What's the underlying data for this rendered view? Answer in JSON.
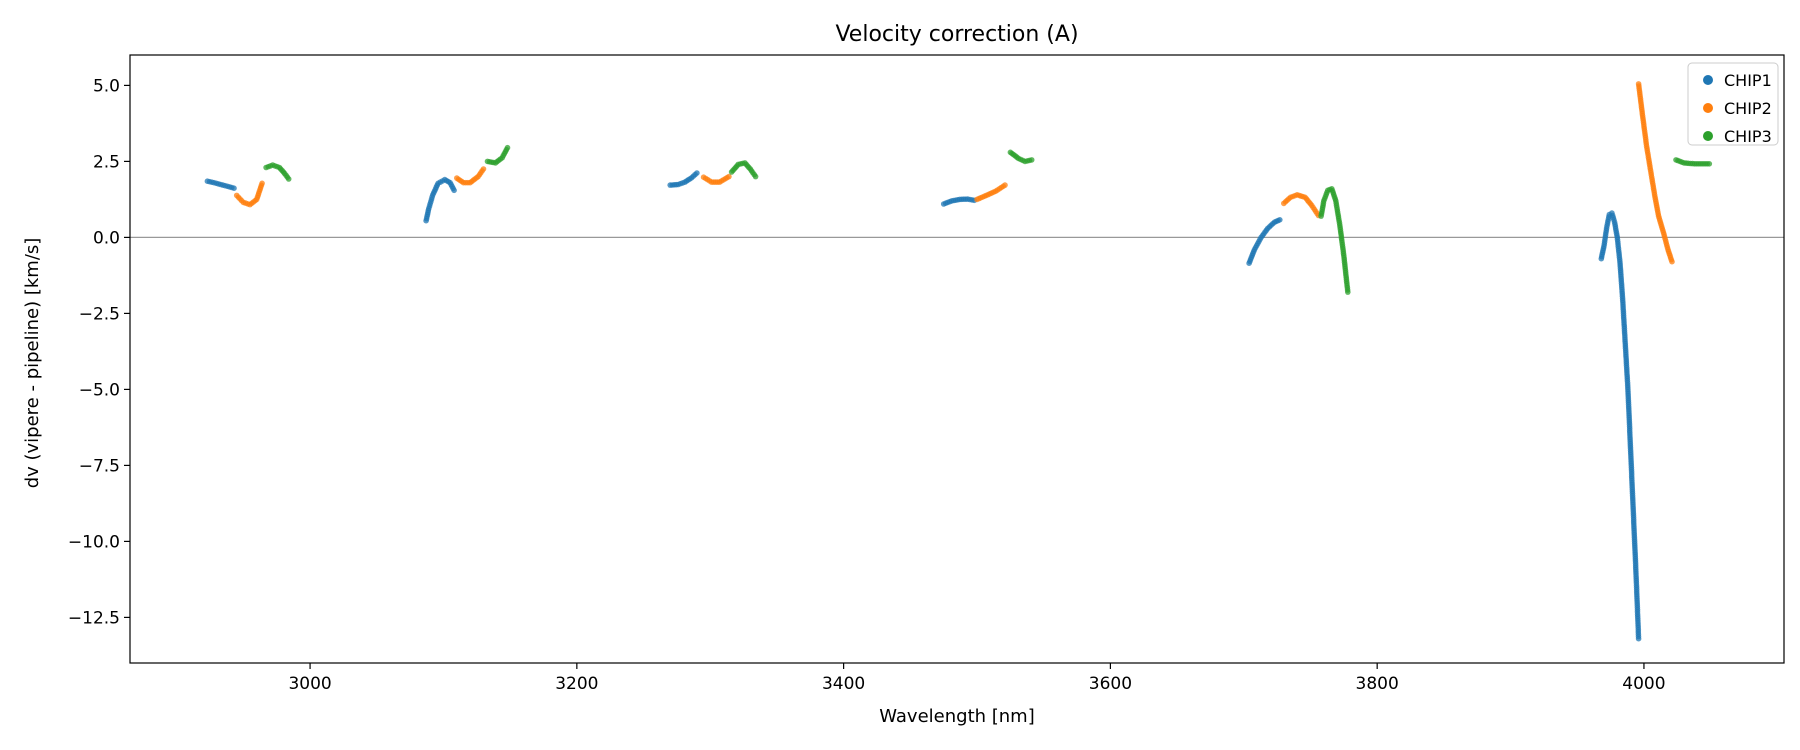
{
  "chart_data": {
    "type": "scatter",
    "title": "Velocity correction (A)",
    "xlabel": "Wavelength [nm]",
    "ylabel": "dv (vipere - pipeline) [km/s]",
    "xlim": [
      2865,
      4105
    ],
    "ylim": [
      -14,
      6
    ],
    "xticks": [
      3000,
      3200,
      3400,
      3600,
      3800,
      4000
    ],
    "xtick_labels": [
      "3000",
      "3200",
      "3400",
      "3600",
      "3800",
      "4000"
    ],
    "yticks": [
      5,
      2.5,
      0,
      -2.5,
      -5,
      -7.5,
      -10,
      -12.5
    ],
    "ytick_labels": [
      "5.0",
      "2.5",
      "0.0",
      "−2.5",
      "−5.0",
      "−7.5",
      "−10.0",
      "−12.5"
    ],
    "reference_line": 0,
    "grid": false,
    "legend_position": "top-right",
    "series": [
      {
        "name": "CHIP1",
        "color": "#1f77b4",
        "segments": [
          [
            [
              2923,
              1.85
            ],
            [
              2928,
              1.8
            ],
            [
              2933,
              1.74
            ],
            [
              2938,
              1.68
            ],
            [
              2943,
              1.62
            ]
          ],
          [
            [
              3087,
              0.55
            ],
            [
              3089,
              0.95
            ],
            [
              3092,
              1.4
            ],
            [
              3096,
              1.78
            ],
            [
              3101,
              1.9
            ],
            [
              3105,
              1.8
            ],
            [
              3108,
              1.55
            ]
          ],
          [
            [
              3270,
              1.72
            ],
            [
              3276,
              1.74
            ],
            [
              3281,
              1.82
            ],
            [
              3286,
              1.96
            ],
            [
              3290,
              2.12
            ]
          ],
          [
            [
              3475,
              1.1
            ],
            [
              3481,
              1.2
            ],
            [
              3487,
              1.25
            ],
            [
              3493,
              1.26
            ],
            [
              3498,
              1.22
            ]
          ],
          [
            [
              3704,
              -0.85
            ],
            [
              3708,
              -0.4
            ],
            [
              3713,
              0.0
            ],
            [
              3718,
              0.3
            ],
            [
              3723,
              0.5
            ],
            [
              3727,
              0.58
            ]
          ],
          [
            [
              3968,
              -0.7
            ],
            [
              3970,
              -0.3
            ],
            [
              3972,
              0.3
            ],
            [
              3974,
              0.75
            ],
            [
              3976,
              0.8
            ],
            [
              3978,
              0.5
            ],
            [
              3980,
              0.0
            ],
            [
              3982,
              -0.8
            ],
            [
              3984,
              -2.0
            ],
            [
              3986,
              -3.5
            ],
            [
              3988,
              -5.0
            ],
            [
              3990,
              -7.0
            ],
            [
              3992,
              -9.0
            ],
            [
              3994,
              -11.0
            ],
            [
              3996,
              -13.2
            ]
          ]
        ]
      },
      {
        "name": "CHIP2",
        "color": "#ff7f0e",
        "segments": [
          [
            [
              2945,
              1.38
            ],
            [
              2950,
              1.15
            ],
            [
              2955,
              1.08
            ],
            [
              2960,
              1.25
            ],
            [
              2964,
              1.78
            ]
          ],
          [
            [
              3110,
              1.95
            ],
            [
              3115,
              1.8
            ],
            [
              3120,
              1.8
            ],
            [
              3126,
              2.0
            ],
            [
              3130,
              2.25
            ]
          ],
          [
            [
              3295,
              1.98
            ],
            [
              3301,
              1.82
            ],
            [
              3307,
              1.82
            ],
            [
              3314,
              2.0
            ]
          ],
          [
            [
              3500,
              1.25
            ],
            [
              3507,
              1.38
            ],
            [
              3514,
              1.52
            ],
            [
              3521,
              1.72
            ]
          ],
          [
            [
              3730,
              1.12
            ],
            [
              3735,
              1.32
            ],
            [
              3740,
              1.4
            ],
            [
              3746,
              1.32
            ],
            [
              3751,
              1.05
            ],
            [
              3756,
              0.72
            ]
          ],
          [
            [
              3996,
              5.05
            ],
            [
              3999,
              4.0
            ],
            [
              4002,
              3.0
            ],
            [
              4005,
              2.2
            ],
            [
              4008,
              1.4
            ],
            [
              4011,
              0.7
            ],
            [
              4015,
              0.1
            ],
            [
              4018,
              -0.4
            ],
            [
              4021,
              -0.8
            ]
          ]
        ]
      },
      {
        "name": "CHIP3",
        "color": "#2ca02c",
        "segments": [
          [
            [
              2967,
              2.3
            ],
            [
              2972,
              2.38
            ],
            [
              2977,
              2.3
            ],
            [
              2981,
              2.1
            ],
            [
              2984,
              1.92
            ]
          ],
          [
            [
              3133,
              2.5
            ],
            [
              3139,
              2.45
            ],
            [
              3144,
              2.62
            ],
            [
              3148,
              2.95
            ]
          ],
          [
            [
              3316,
              2.15
            ],
            [
              3321,
              2.4
            ],
            [
              3326,
              2.45
            ],
            [
              3330,
              2.25
            ],
            [
              3334,
              2.0
            ]
          ],
          [
            [
              3525,
              2.8
            ],
            [
              3531,
              2.6
            ],
            [
              3536,
              2.5
            ],
            [
              3541,
              2.55
            ]
          ],
          [
            [
              3758,
              0.7
            ],
            [
              3760,
              1.2
            ],
            [
              3763,
              1.55
            ],
            [
              3766,
              1.6
            ],
            [
              3769,
              1.2
            ],
            [
              3772,
              0.4
            ],
            [
              3775,
              -0.6
            ],
            [
              3778,
              -1.8
            ]
          ],
          [
            [
              4024,
              2.55
            ],
            [
              4030,
              2.45
            ],
            [
              4038,
              2.42
            ],
            [
              4049,
              2.42
            ]
          ]
        ]
      }
    ]
  }
}
